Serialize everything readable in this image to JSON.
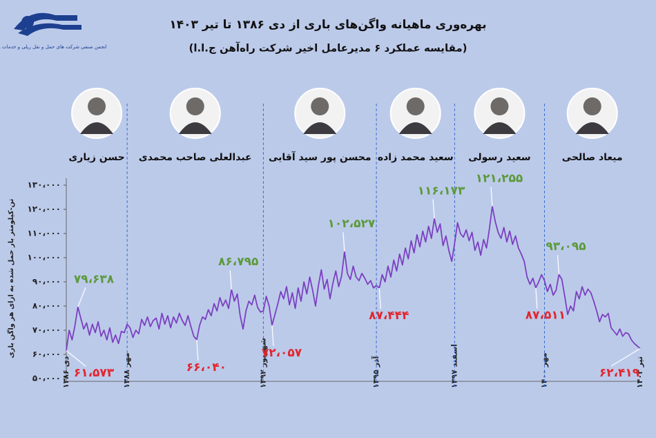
{
  "header": {
    "logo_text": "انجمن صنفی شرکت های حمل و نقل ریلی و خدمات وابسته"
  },
  "chart_data": {
    "type": "line",
    "title": "بهره‌وری ماهیانه واگن‌های باری از دی ۱۳۸۶ تا تیر ۱۴۰۳",
    "subtitle": "(مقایسه عملکرد ۶ مدیرعامل اخیر شرکت راه‌آهن ج.ا.ا)",
    "y_label": "تن-کیلومتر بار حمل شده به ازای هر واگن باری",
    "color": "#7a3fc0",
    "ylim": [
      50000,
      130000
    ],
    "yticks": [
      {
        "value": 50000,
        "label": "۵۰،۰۰۰"
      },
      {
        "value": 60000,
        "label": "۶۰،۰۰۰"
      },
      {
        "value": 70000,
        "label": "۷۰،۰۰۰"
      },
      {
        "value": 80000,
        "label": "۸۰،۰۰۰"
      },
      {
        "value": 90000,
        "label": "۹۰،۰۰۰"
      },
      {
        "value": 100000,
        "label": "۱۰۰،۰۰۰"
      },
      {
        "value": 110000,
        "label": "۱۱۰،۰۰۰"
      },
      {
        "value": 120000,
        "label": "۱۲۰،۰۰۰"
      },
      {
        "value": 130000,
        "label": "۱۳۰،۰۰۰"
      }
    ],
    "managers": [
      "حسن زیاری",
      "عبدالعلی صاحب محمدی",
      "محسن پور سید آقایی",
      "سعید محمد زاده",
      "سعید رسولی",
      "میعاد صالحی"
    ],
    "categories": [
      "دی ۱۳۸۶",
      null,
      null,
      null,
      null,
      null,
      null,
      null,
      null,
      null,
      null,
      null,
      null,
      null,
      null,
      null,
      null,
      null,
      null,
      null,
      null,
      "مهر ۱۳۸۸",
      null,
      null,
      null,
      null,
      null,
      null,
      null,
      null,
      null,
      null,
      null,
      null,
      null,
      null,
      null,
      null,
      null,
      null,
      null,
      null,
      null,
      null,
      null,
      null,
      null,
      null,
      null,
      null,
      null,
      null,
      null,
      null,
      null,
      null,
      null,
      null,
      null,
      null,
      null,
      null,
      null,
      null,
      null,
      null,
      null,
      null,
      "شهریور ۱۳۹۲",
      null,
      null,
      null,
      null,
      null,
      null,
      null,
      null,
      null,
      null,
      null,
      null,
      null,
      null,
      null,
      null,
      null,
      null,
      null,
      null,
      null,
      null,
      null,
      null,
      null,
      null,
      null,
      null,
      null,
      null,
      null,
      null,
      null,
      null,
      null,
      null,
      null,
      null,
      "آذر ۱۳۹۵",
      null,
      null,
      null,
      null,
      null,
      null,
      null,
      null,
      null,
      null,
      null,
      null,
      null,
      null,
      null,
      null,
      null,
      null,
      null,
      null,
      null,
      null,
      null,
      null,
      null,
      null,
      "اسفند ۱۳۹۷",
      null,
      null,
      null,
      null,
      null,
      null,
      null,
      null,
      null,
      null,
      null,
      null,
      null,
      null,
      null,
      null,
      null,
      null,
      null,
      null,
      null,
      null,
      null,
      null,
      null,
      null,
      null,
      null,
      null,
      null,
      "مهر ۱۴۰۰",
      null,
      null,
      null,
      null,
      null,
      null,
      null,
      null,
      null,
      null,
      null,
      null,
      null,
      null,
      null,
      null,
      null,
      null,
      null,
      null,
      null,
      null,
      null,
      null,
      null,
      null,
      null,
      null,
      null,
      null,
      null,
      null,
      "تیر ۱۴۰۳"
    ],
    "values": [
      61573,
      70000,
      66000,
      72000,
      79638,
      75000,
      70500,
      73000,
      68000,
      72500,
      69000,
      73500,
      67500,
      70000,
      66000,
      71000,
      65000,
      68000,
      64500,
      69500,
      69000,
      72500,
      71000,
      67000,
      70000,
      68500,
      74500,
      72000,
      75500,
      71500,
      74000,
      75000,
      70500,
      77000,
      72500,
      76000,
      71000,
      75500,
      73000,
      77000,
      74000,
      72000,
      76000,
      71500,
      67500,
      66040,
      72000,
      75500,
      74500,
      78500,
      76000,
      81000,
      78000,
      83500,
      80000,
      82500,
      79000,
      86795,
      82000,
      85000,
      76000,
      70500,
      78000,
      82000,
      80500,
      84500,
      79500,
      77500,
      78000,
      84000,
      80000,
      72057,
      76500,
      81000,
      86000,
      83000,
      88000,
      80500,
      85500,
      79000,
      87500,
      82000,
      90000,
      85000,
      92000,
      86500,
      80000,
      88500,
      95000,
      87000,
      91000,
      83000,
      89500,
      94500,
      88000,
      92500,
      102527,
      93500,
      91000,
      96500,
      92000,
      90500,
      93500,
      91500,
      89000,
      90500,
      87500,
      88500,
      87444,
      93000,
      90000,
      96500,
      92000,
      99000,
      94500,
      101500,
      97000,
      104000,
      99500,
      107000,
      102000,
      109500,
      104500,
      111000,
      106500,
      113000,
      108000,
      116173,
      110500,
      114000,
      105000,
      109000,
      103000,
      98500,
      106000,
      114500,
      110000,
      108500,
      111500,
      107000,
      110500,
      103000,
      106500,
      101000,
      107500,
      104000,
      112000,
      121255,
      115000,
      110500,
      108000,
      112500,
      106500,
      111000,
      105500,
      109000,
      104000,
      101500,
      98500,
      92000,
      89000,
      91500,
      87511,
      90000,
      93000,
      90500,
      86000,
      89000,
      84500,
      86500,
      93095,
      91000,
      84000,
      76500,
      80000,
      78000,
      86000,
      83000,
      88000,
      84500,
      87000,
      85500,
      82000,
      78000,
      73500,
      76500,
      75500,
      77000,
      71000,
      69500,
      68000,
      70500,
      67500,
      69000,
      68500,
      66000,
      64500,
      63500,
      62419
    ],
    "annotations": [
      {
        "value": 79638,
        "label": "۷۹،۶۳۸",
        "color": "#5b9a3a",
        "side": "above"
      },
      {
        "value": 61573,
        "label": "۶۱،۵۷۳",
        "color": "#e2262e",
        "side": "below"
      },
      {
        "value": 86795,
        "label": "۸۶،۷۹۵",
        "color": "#5b9a3a",
        "side": "above"
      },
      {
        "value": 66040,
        "label": "۶۶،۰۴۰",
        "color": "#e2262e",
        "side": "below"
      },
      {
        "value": 102527,
        "label": "۱۰۲،۵۲۷",
        "color": "#5b9a3a",
        "side": "above"
      },
      {
        "value": 72057,
        "label": "۷۲،۰۵۷",
        "color": "#e2262e",
        "side": "below"
      },
      {
        "value": 116173,
        "label": "۱۱۶،۱۷۳",
        "color": "#5b9a3a",
        "side": "above"
      },
      {
        "value": 87444,
        "label": "۸۷،۴۴۴",
        "color": "#e2262e",
        "side": "below"
      },
      {
        "value": 121255,
        "label": "۱۲۱،۲۵۵",
        "color": "#5b9a3a",
        "side": "above"
      },
      {
        "value": 87511,
        "label": "۸۷،۵۱۱",
        "color": "#e2262e",
        "side": "below"
      },
      {
        "value": 93095,
        "label": "۹۳،۰۹۵",
        "color": "#5b9a3a",
        "side": "above"
      },
      {
        "value": 62419,
        "label": "۶۲،۴۱۹",
        "color": "#e2262e",
        "side": "below"
      }
    ]
  }
}
